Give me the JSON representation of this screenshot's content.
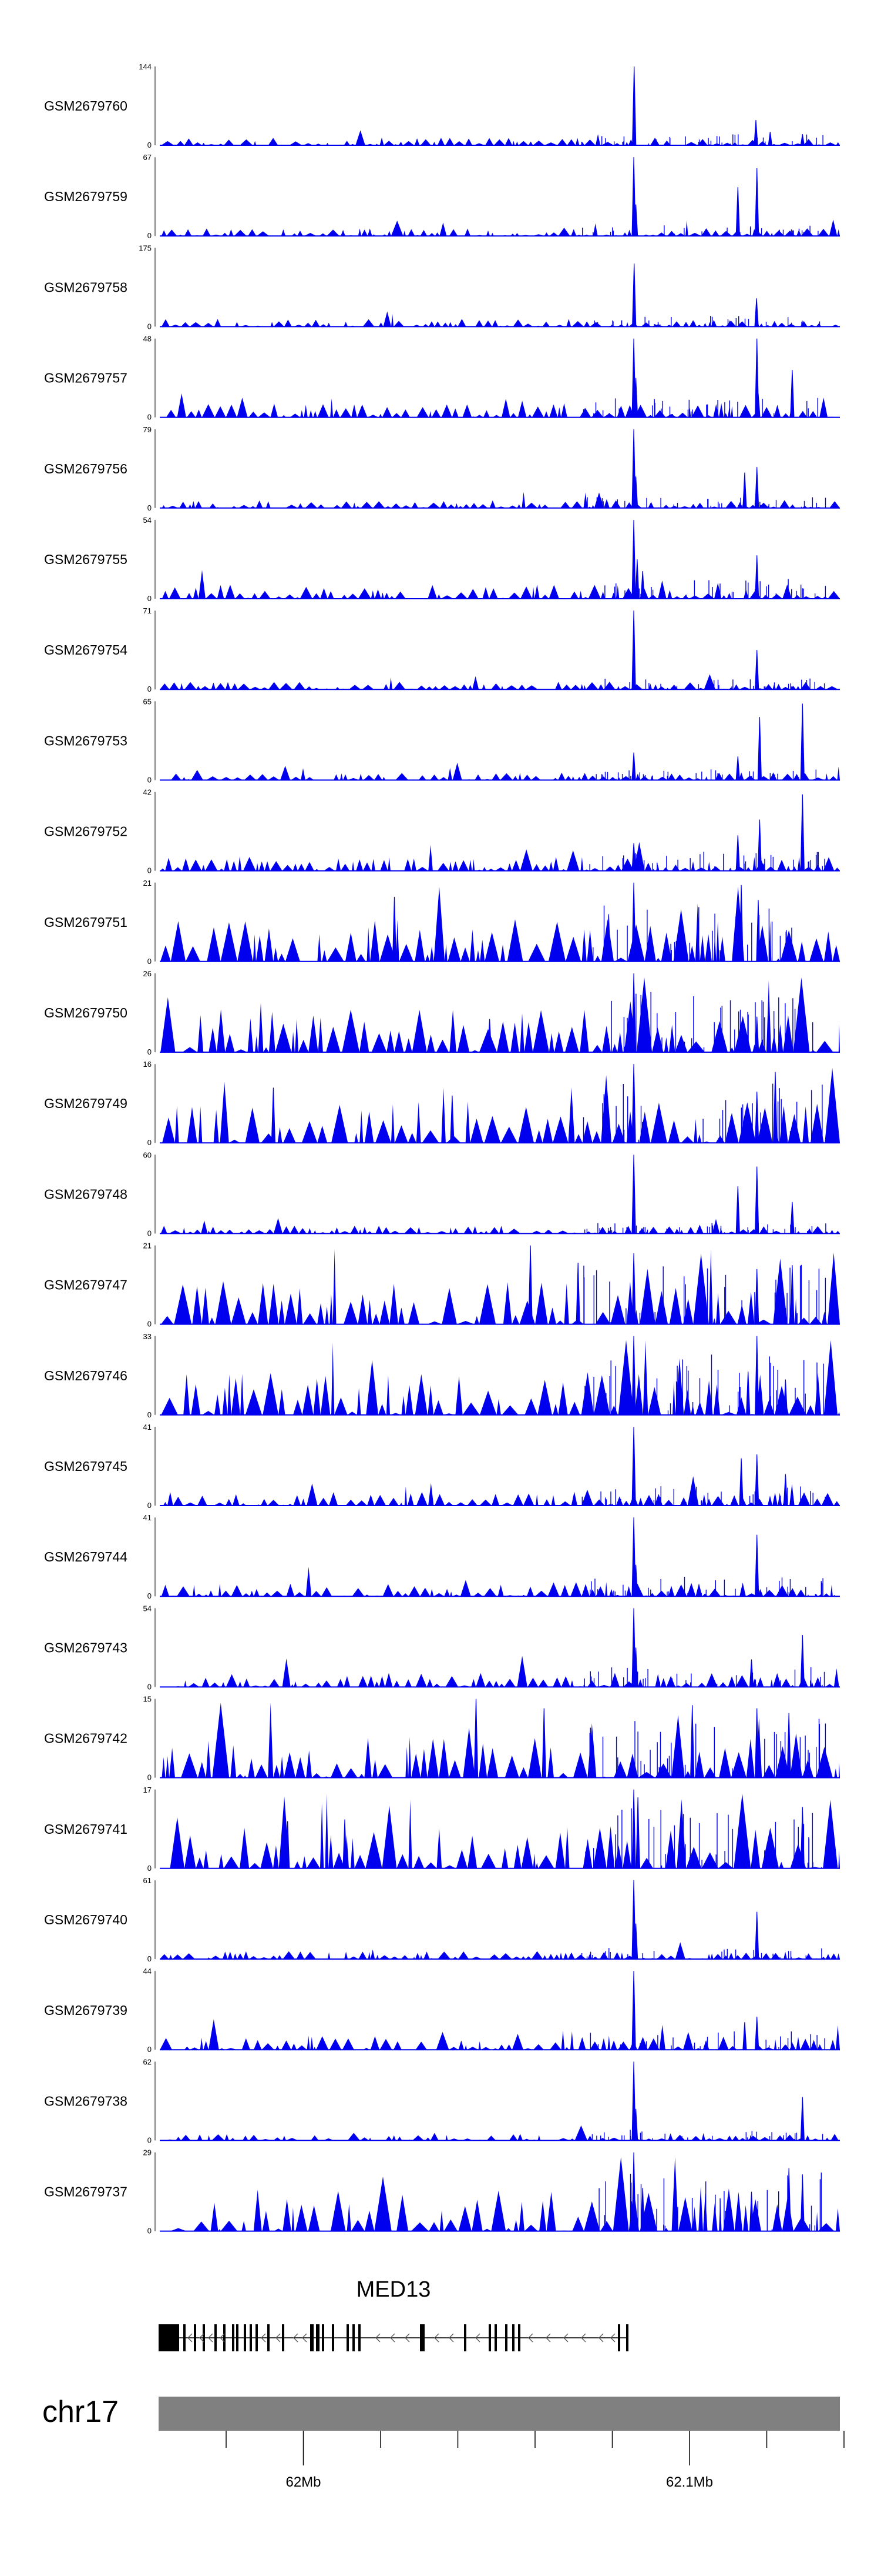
{
  "chart_data": {
    "type": "area",
    "title": "",
    "xlabel": "",
    "ylabel": "",
    "color": "#0000ee",
    "tracks": [
      {
        "name": "GSM2679760",
        "ymax": "144",
        "ymin": "0",
        "peaks": [
          {
            "x": 0.6975,
            "h": 1.0
          },
          {
            "x": 0.8765,
            "h": 0.32
          },
          {
            "x": 0.8975,
            "h": 0.17
          },
          {
            "x": 0.945,
            "h": 0.14
          }
        ]
      },
      {
        "name": "GSM2679759",
        "ymax": "67",
        "ymin": "0",
        "peaks": [
          {
            "x": 0.697,
            "h": 1.0
          },
          {
            "x": 0.85,
            "h": 0.62
          },
          {
            "x": 0.878,
            "h": 0.86
          },
          {
            "x": 0.7,
            "h": 0.4
          }
        ]
      },
      {
        "name": "GSM2679758",
        "ymax": "175",
        "ymin": "0",
        "peaks": [
          {
            "x": 0.6975,
            "h": 0.8
          },
          {
            "x": 0.8775,
            "h": 0.36
          }
        ]
      },
      {
        "name": "GSM2679757",
        "ymax": "48",
        "ymin": "0",
        "peaks": [
          {
            "x": 0.697,
            "h": 1.0
          },
          {
            "x": 0.878,
            "h": 1.0
          },
          {
            "x": 0.93,
            "h": 0.6
          },
          {
            "x": 0.7,
            "h": 0.5
          },
          {
            "x": 0.88,
            "h": 0.3
          }
        ]
      },
      {
        "name": "GSM2679756",
        "ymax": "79",
        "ymin": "0",
        "peaks": [
          {
            "x": 0.697,
            "h": 1.0
          },
          {
            "x": 0.86,
            "h": 0.45
          },
          {
            "x": 0.878,
            "h": 0.52
          },
          {
            "x": 0.7,
            "h": 0.4
          }
        ]
      },
      {
        "name": "GSM2679755",
        "ymax": "54",
        "ymin": "0",
        "peaks": [
          {
            "x": 0.697,
            "h": 1.0
          },
          {
            "x": 0.702,
            "h": 0.5
          },
          {
            "x": 0.878,
            "h": 0.55
          },
          {
            "x": 0.71,
            "h": 0.35
          }
        ]
      },
      {
        "name": "GSM2679754",
        "ymax": "71",
        "ymin": "0",
        "peaks": [
          {
            "x": 0.697,
            "h": 1.0
          },
          {
            "x": 0.878,
            "h": 0.5
          }
        ]
      },
      {
        "name": "GSM2679753",
        "ymax": "65",
        "ymin": "0",
        "peaks": [
          {
            "x": 0.882,
            "h": 0.8
          },
          {
            "x": 0.945,
            "h": 0.97
          },
          {
            "x": 0.697,
            "h": 0.35
          },
          {
            "x": 0.85,
            "h": 0.3
          }
        ]
      },
      {
        "name": "GSM2679752",
        "ymax": "42",
        "ymin": "0",
        "peaks": [
          {
            "x": 0.945,
            "h": 0.97
          },
          {
            "x": 0.882,
            "h": 0.65
          },
          {
            "x": 0.697,
            "h": 0.35
          },
          {
            "x": 0.85,
            "h": 0.45
          }
        ]
      },
      {
        "name": "GSM2679751",
        "ymax": "21",
        "ymin": "0",
        "peaks": [
          {
            "x": 0.697,
            "h": 1.0
          },
          {
            "x": 0.855,
            "h": 0.97
          },
          {
            "x": 0.345,
            "h": 0.82
          },
          {
            "x": 0.88,
            "h": 0.78
          },
          {
            "x": 0.66,
            "h": 0.6
          }
        ]
      },
      {
        "name": "GSM2679750",
        "ymax": "26",
        "ymin": "0",
        "peaks": [
          {
            "x": 0.697,
            "h": 1.0
          },
          {
            "x": 0.485,
            "h": 0.42
          },
          {
            "x": 0.878,
            "h": 0.45
          },
          {
            "x": 0.95,
            "h": 0.35
          }
        ]
      },
      {
        "name": "GSM2679749",
        "ymax": "16",
        "ymin": "0",
        "peaks": [
          {
            "x": 0.697,
            "h": 1.0
          },
          {
            "x": 0.905,
            "h": 0.9
          },
          {
            "x": 0.167,
            "h": 0.7
          },
          {
            "x": 0.43,
            "h": 0.6
          },
          {
            "x": 0.878,
            "h": 0.65
          }
        ]
      },
      {
        "name": "GSM2679748",
        "ymax": "60",
        "ymin": "0",
        "peaks": [
          {
            "x": 0.697,
            "h": 1.0
          },
          {
            "x": 0.85,
            "h": 0.6
          },
          {
            "x": 0.878,
            "h": 0.85
          },
          {
            "x": 0.93,
            "h": 0.4
          }
        ]
      },
      {
        "name": "GSM2679747",
        "ymax": "21",
        "ymin": "0",
        "peaks": [
          {
            "x": 0.545,
            "h": 1.0
          },
          {
            "x": 0.697,
            "h": 0.9
          },
          {
            "x": 0.615,
            "h": 0.78
          },
          {
            "x": 0.93,
            "h": 0.75
          },
          {
            "x": 0.878,
            "h": 0.7
          }
        ]
      },
      {
        "name": "GSM2679746",
        "ymax": "33",
        "ymin": "0",
        "peaks": [
          {
            "x": 0.697,
            "h": 1.0
          },
          {
            "x": 0.878,
            "h": 1.0
          },
          {
            "x": 0.865,
            "h": 0.55
          },
          {
            "x": 0.92,
            "h": 0.45
          }
        ]
      },
      {
        "name": "GSM2679745",
        "ymax": "41",
        "ymin": "0",
        "peaks": [
          {
            "x": 0.697,
            "h": 1.0
          },
          {
            "x": 0.855,
            "h": 0.6
          },
          {
            "x": 0.878,
            "h": 0.65
          },
          {
            "x": 0.92,
            "h": 0.4
          }
        ]
      },
      {
        "name": "GSM2679744",
        "ymax": "41",
        "ymin": "0",
        "peaks": [
          {
            "x": 0.697,
            "h": 1.0
          },
          {
            "x": 0.878,
            "h": 0.78
          },
          {
            "x": 0.7,
            "h": 0.4
          }
        ]
      },
      {
        "name": "GSM2679743",
        "ymax": "54",
        "ymin": "0",
        "peaks": [
          {
            "x": 0.697,
            "h": 1.0
          },
          {
            "x": 0.945,
            "h": 0.66
          },
          {
            "x": 0.7,
            "h": 0.5
          },
          {
            "x": 0.87,
            "h": 0.35
          }
        ]
      },
      {
        "name": "GSM2679742",
        "ymax": "15",
        "ymin": "0",
        "peaks": [
          {
            "x": 0.465,
            "h": 1.0
          },
          {
            "x": 0.565,
            "h": 0.88
          },
          {
            "x": 0.783,
            "h": 0.92
          },
          {
            "x": 0.878,
            "h": 0.88
          },
          {
            "x": 0.925,
            "h": 0.82
          }
        ]
      },
      {
        "name": "GSM2679741",
        "ymax": "17",
        "ymin": "0",
        "peaks": [
          {
            "x": 0.697,
            "h": 1.0
          },
          {
            "x": 0.703,
            "h": 0.9
          },
          {
            "x": 0.945,
            "h": 0.78
          },
          {
            "x": 0.272,
            "h": 0.62
          },
          {
            "x": 0.188,
            "h": 0.6
          }
        ]
      },
      {
        "name": "GSM2679740",
        "ymax": "61",
        "ymin": "0",
        "peaks": [
          {
            "x": 0.697,
            "h": 1.0
          },
          {
            "x": 0.878,
            "h": 0.6
          },
          {
            "x": 0.7,
            "h": 0.45
          }
        ]
      },
      {
        "name": "GSM2679739",
        "ymax": "44",
        "ymin": "0",
        "peaks": [
          {
            "x": 0.697,
            "h": 1.0
          },
          {
            "x": 0.878,
            "h": 0.42
          },
          {
            "x": 0.86,
            "h": 0.35
          }
        ]
      },
      {
        "name": "GSM2679738",
        "ymax": "62",
        "ymin": "0",
        "peaks": [
          {
            "x": 0.697,
            "h": 1.0
          },
          {
            "x": 0.945,
            "h": 0.55
          },
          {
            "x": 0.7,
            "h": 0.4
          }
        ]
      },
      {
        "name": "GSM2679737",
        "ymax": "29",
        "ymin": "0",
        "peaks": [
          {
            "x": 0.697,
            "h": 1.0
          },
          {
            "x": 0.925,
            "h": 0.8
          },
          {
            "x": 0.945,
            "h": 0.72
          },
          {
            "x": 0.87,
            "h": 0.5
          },
          {
            "x": 0.71,
            "h": 0.55
          }
        ]
      }
    ],
    "gene": {
      "name": "MED13",
      "strand": "-"
    },
    "chromosome": {
      "name": "chr17",
      "ticks": [
        "62Mb",
        "62.1Mb"
      ],
      "minor_tick_count": 9
    }
  }
}
